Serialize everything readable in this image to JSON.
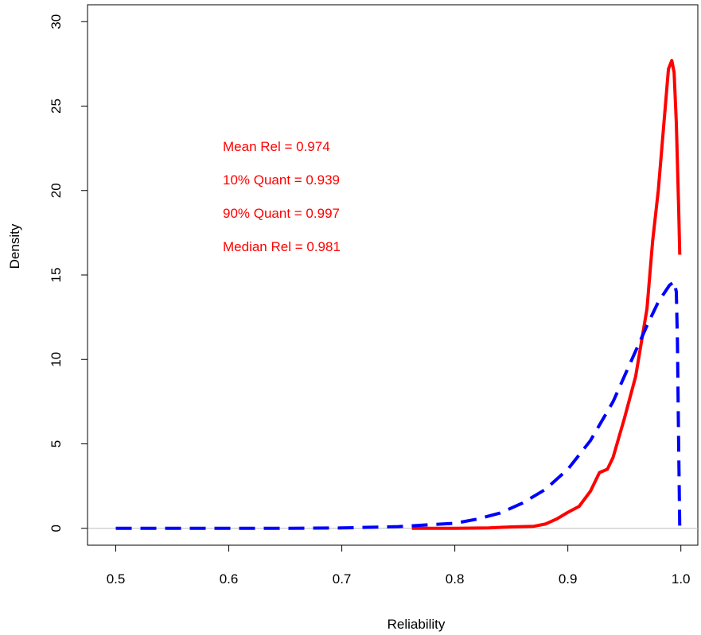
{
  "chart_data": {
    "type": "line",
    "title": "",
    "xlabel": "Reliability",
    "ylabel": "Density",
    "xlim": [
      0.475,
      1.015
    ],
    "ylim": [
      -1.0,
      31.0
    ],
    "x_ticks": [
      "0.5",
      "0.6",
      "0.7",
      "0.8",
      "0.9",
      "1.0"
    ],
    "y_ticks": [
      "0",
      "5",
      "10",
      "15",
      "20",
      "25",
      "30"
    ],
    "grid": false,
    "legend": "none",
    "baseline_y": 0,
    "annotations": [
      "Mean Rel = 0.974",
      "10% Quant = 0.939",
      "90% Quant = 0.997",
      "Median Rel = 0.981"
    ],
    "series": [
      {
        "color": "#ff0000",
        "style": "solid",
        "points": [
          [
            0.762,
            0.0
          ],
          [
            0.8,
            0.0
          ],
          [
            0.83,
            0.02
          ],
          [
            0.85,
            0.08
          ],
          [
            0.87,
            0.12
          ],
          [
            0.88,
            0.25
          ],
          [
            0.89,
            0.55
          ],
          [
            0.9,
            0.95
          ],
          [
            0.91,
            1.3
          ],
          [
            0.92,
            2.2
          ],
          [
            0.928,
            3.3
          ],
          [
            0.935,
            3.5
          ],
          [
            0.94,
            4.2
          ],
          [
            0.95,
            6.5
          ],
          [
            0.96,
            9.0
          ],
          [
            0.97,
            13.0
          ],
          [
            0.975,
            17.0
          ],
          [
            0.98,
            20.0
          ],
          [
            0.985,
            24.0
          ],
          [
            0.989,
            27.2
          ],
          [
            0.992,
            27.7
          ],
          [
            0.994,
            27.0
          ],
          [
            0.996,
            24.0
          ],
          [
            0.998,
            19.0
          ],
          [
            0.999,
            16.2
          ]
        ]
      },
      {
        "color": "#0000ff",
        "style": "dashed",
        "points": [
          [
            0.5,
            0.0
          ],
          [
            0.55,
            0.0
          ],
          [
            0.6,
            0.0
          ],
          [
            0.65,
            0.0
          ],
          [
            0.7,
            0.02
          ],
          [
            0.75,
            0.1
          ],
          [
            0.8,
            0.3
          ],
          [
            0.82,
            0.55
          ],
          [
            0.84,
            0.9
          ],
          [
            0.86,
            1.5
          ],
          [
            0.88,
            2.3
          ],
          [
            0.9,
            3.5
          ],
          [
            0.92,
            5.2
          ],
          [
            0.94,
            7.5
          ],
          [
            0.96,
            10.5
          ],
          [
            0.97,
            12.0
          ],
          [
            0.98,
            13.4
          ],
          [
            0.99,
            14.4
          ],
          [
            0.994,
            14.6
          ],
          [
            0.996,
            14.0
          ],
          [
            0.997,
            11.0
          ],
          [
            0.998,
            5.0
          ],
          [
            0.999,
            0.0
          ]
        ]
      }
    ]
  }
}
